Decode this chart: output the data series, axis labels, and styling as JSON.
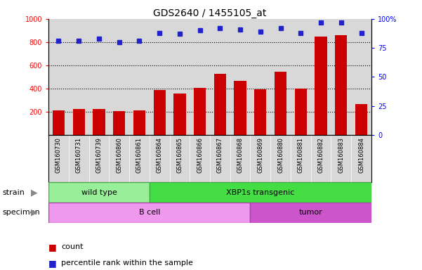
{
  "title": "GDS2640 / 1455105_at",
  "samples": [
    "GSM160730",
    "GSM160731",
    "GSM160739",
    "GSM160860",
    "GSM160861",
    "GSM160864",
    "GSM160865",
    "GSM160866",
    "GSM160867",
    "GSM160868",
    "GSM160869",
    "GSM160880",
    "GSM160881",
    "GSM160882",
    "GSM160883",
    "GSM160884"
  ],
  "counts": [
    210,
    225,
    225,
    205,
    210,
    390,
    355,
    405,
    525,
    465,
    395,
    545,
    400,
    845,
    860,
    265
  ],
  "percentiles": [
    81,
    81,
    83,
    80,
    81,
    88,
    87,
    90,
    92,
    91,
    89,
    92,
    88,
    97,
    97,
    88
  ],
  "strain_groups": [
    {
      "label": "wild type",
      "start": 0,
      "end": 5,
      "color": "#99EE99"
    },
    {
      "label": "XBP1s transgenic",
      "start": 5,
      "end": 16,
      "color": "#44DD44"
    }
  ],
  "specimen_groups": [
    {
      "label": "B cell",
      "start": 0,
      "end": 10,
      "color": "#EE99EE"
    },
    {
      "label": "tumor",
      "start": 10,
      "end": 16,
      "color": "#CC55CC"
    }
  ],
  "left_ylim": [
    0,
    1000
  ],
  "right_ylim": [
    0,
    100
  ],
  "left_yticks": [
    200,
    400,
    600,
    800,
    1000
  ],
  "right_yticks": [
    0,
    25,
    50,
    75,
    100
  ],
  "right_yticklabels": [
    "0",
    "25",
    "50",
    "75",
    "100%"
  ],
  "bar_color": "#CC0000",
  "dot_color": "#2222CC",
  "plot_bg_color": "#D8D8D8",
  "gridline_color": "black",
  "gridline_style": "dotted",
  "bar_width": 0.6,
  "dot_marker": "s",
  "dot_size": 4,
  "title_fontsize": 10,
  "tick_fontsize": 7,
  "label_fontsize": 8,
  "legend_fontsize": 8
}
